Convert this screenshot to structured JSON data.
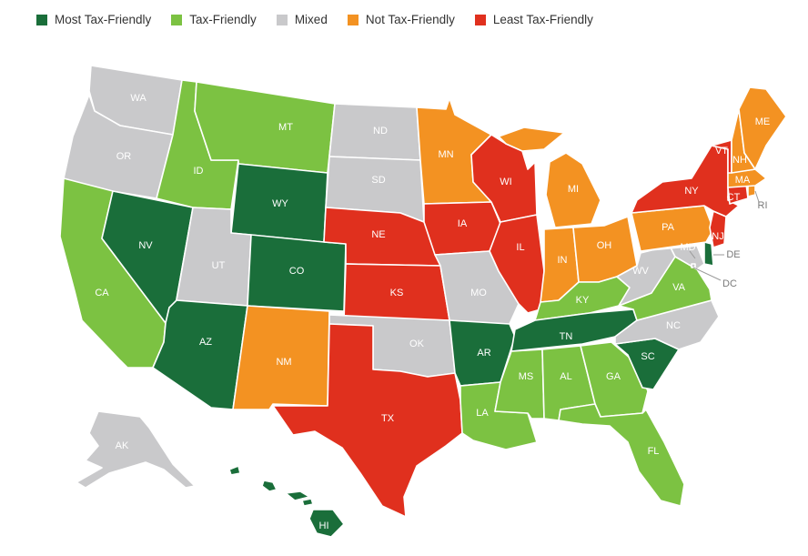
{
  "colors": {
    "most": "#1a6e3a",
    "tax": "#7cc242",
    "mixed": "#c9c9cb",
    "not": "#f39222",
    "least": "#e0301e"
  },
  "legend": [
    {
      "key": "most",
      "label": "Most Tax-Friendly"
    },
    {
      "key": "tax",
      "label": "Tax-Friendly"
    },
    {
      "key": "mixed",
      "label": "Mixed"
    },
    {
      "key": "not",
      "label": "Not Tax-Friendly"
    },
    {
      "key": "least",
      "label": "Least Tax-Friendly"
    }
  ],
  "states": {
    "WA": {
      "abbr": "WA",
      "cat": "mixed"
    },
    "OR": {
      "abbr": "OR",
      "cat": "mixed"
    },
    "CA": {
      "abbr": "CA",
      "cat": "tax"
    },
    "NV": {
      "abbr": "NV",
      "cat": "most"
    },
    "ID": {
      "abbr": "ID",
      "cat": "tax"
    },
    "MT": {
      "abbr": "MT",
      "cat": "tax"
    },
    "WY": {
      "abbr": "WY",
      "cat": "most"
    },
    "UT": {
      "abbr": "UT",
      "cat": "mixed"
    },
    "AZ": {
      "abbr": "AZ",
      "cat": "most"
    },
    "CO": {
      "abbr": "CO",
      "cat": "most"
    },
    "NM": {
      "abbr": "NM",
      "cat": "not"
    },
    "ND": {
      "abbr": "ND",
      "cat": "mixed"
    },
    "SD": {
      "abbr": "SD",
      "cat": "mixed"
    },
    "NE": {
      "abbr": "NE",
      "cat": "least"
    },
    "KS": {
      "abbr": "KS",
      "cat": "least"
    },
    "OK": {
      "abbr": "OK",
      "cat": "mixed"
    },
    "TX": {
      "abbr": "TX",
      "cat": "least"
    },
    "MN": {
      "abbr": "MN",
      "cat": "not"
    },
    "IA": {
      "abbr": "IA",
      "cat": "least"
    },
    "MO": {
      "abbr": "MO",
      "cat": "mixed"
    },
    "AR": {
      "abbr": "AR",
      "cat": "most"
    },
    "LA": {
      "abbr": "LA",
      "cat": "tax"
    },
    "WI": {
      "abbr": "WI",
      "cat": "least"
    },
    "IL": {
      "abbr": "IL",
      "cat": "least"
    },
    "MI": {
      "abbr": "MI",
      "cat": "not"
    },
    "IN": {
      "abbr": "IN",
      "cat": "not"
    },
    "OH": {
      "abbr": "OH",
      "cat": "not"
    },
    "KY": {
      "abbr": "KY",
      "cat": "tax"
    },
    "TN": {
      "abbr": "TN",
      "cat": "most"
    },
    "MS": {
      "abbr": "MS",
      "cat": "tax"
    },
    "AL": {
      "abbr": "AL",
      "cat": "tax"
    },
    "GA": {
      "abbr": "GA",
      "cat": "tax"
    },
    "FL": {
      "abbr": "FL",
      "cat": "tax"
    },
    "SC": {
      "abbr": "SC",
      "cat": "most"
    },
    "NC": {
      "abbr": "NC",
      "cat": "mixed"
    },
    "VA": {
      "abbr": "VA",
      "cat": "tax"
    },
    "WV": {
      "abbr": "WV",
      "cat": "mixed"
    },
    "PA": {
      "abbr": "PA",
      "cat": "not"
    },
    "NY": {
      "abbr": "NY",
      "cat": "least"
    },
    "VT": {
      "abbr": "VT",
      "cat": "least"
    },
    "NH": {
      "abbr": "NH",
      "cat": "not"
    },
    "ME": {
      "abbr": "ME",
      "cat": "not"
    },
    "MA": {
      "abbr": "MA",
      "cat": "not"
    },
    "RI": {
      "abbr": "RI",
      "cat": "not"
    },
    "CT": {
      "abbr": "CT",
      "cat": "least"
    },
    "NJ": {
      "abbr": "NJ",
      "cat": "least"
    },
    "DE": {
      "abbr": "DE",
      "cat": "most"
    },
    "MD": {
      "abbr": "MD",
      "cat": "mixed"
    },
    "DC": {
      "abbr": "DC",
      "cat": "mixed"
    },
    "AK": {
      "abbr": "AK",
      "cat": "mixed"
    },
    "HI": {
      "abbr": "HI",
      "cat": "most"
    }
  }
}
